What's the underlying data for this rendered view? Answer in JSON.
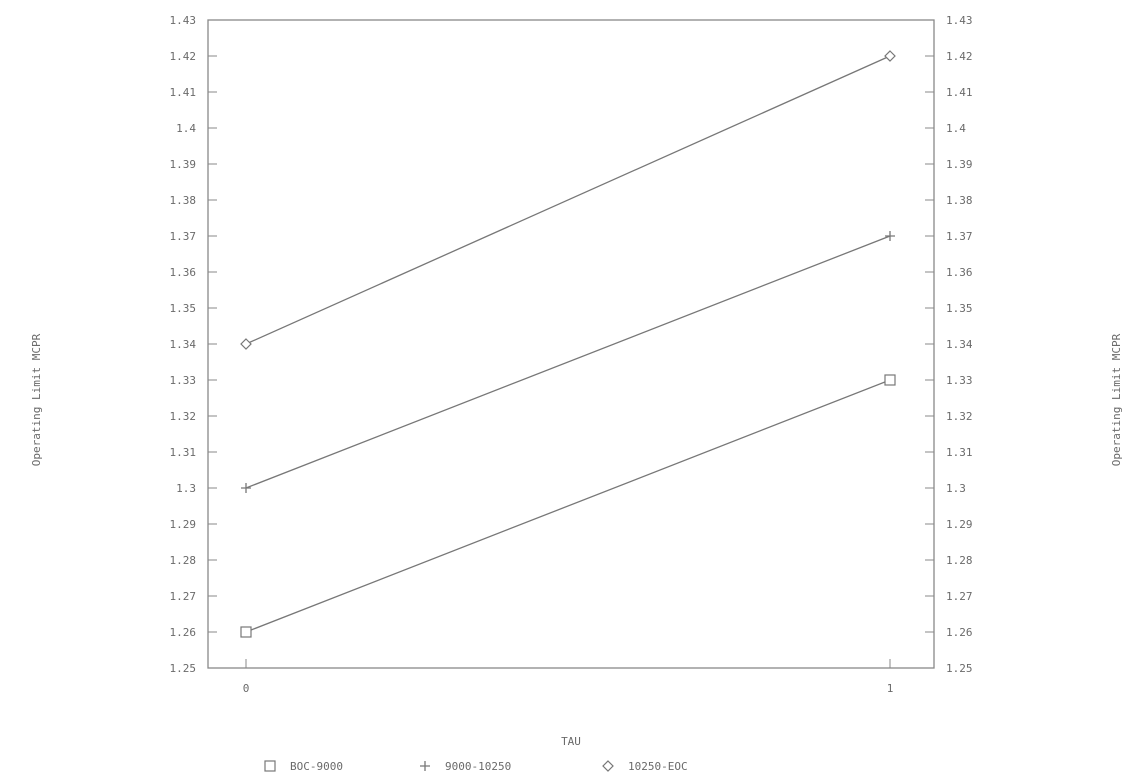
{
  "chart_data": {
    "type": "line",
    "title": "",
    "xlabel": "TAU",
    "ylabel": "Operating Limit MCPR",
    "y2label": "Operating Limit MCPR",
    "x": [
      0,
      1
    ],
    "x_ticks": [
      "0",
      "1"
    ],
    "ylim": [
      1.25,
      1.43
    ],
    "y_ticks": [
      "1.25",
      "1.26",
      "1.27",
      "1.28",
      "1.29",
      "1.3",
      "1.31",
      "1.32",
      "1.33",
      "1.34",
      "1.35",
      "1.36",
      "1.37",
      "1.38",
      "1.39",
      "1.4",
      "1.41",
      "1.42",
      "1.43"
    ],
    "grid": false,
    "legend_position": "bottom",
    "series": [
      {
        "name": "BOC-9000",
        "marker": "square",
        "values": [
          1.26,
          1.33
        ]
      },
      {
        "name": "9000-10250",
        "marker": "plus",
        "values": [
          1.3,
          1.37
        ]
      },
      {
        "name": "10250-EOC",
        "marker": "diamond",
        "values": [
          1.34,
          1.42
        ]
      }
    ],
    "colors": {
      "line": "#777777",
      "axis": "#888888",
      "text": "#6a6a6a"
    }
  }
}
